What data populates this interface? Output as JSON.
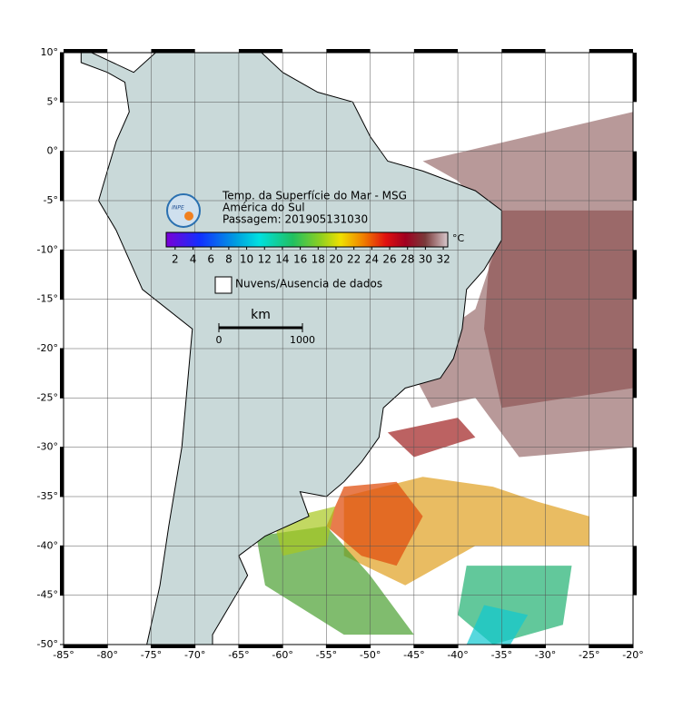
{
  "map": {
    "xlim": [
      -85,
      -20
    ],
    "ylim": [
      -50,
      10
    ],
    "xticks": [
      {
        "value": -85,
        "label": "-85°"
      },
      {
        "value": -80,
        "label": "-80°"
      },
      {
        "value": -75,
        "label": "-75°"
      },
      {
        "value": -70,
        "label": "-70°"
      },
      {
        "value": -65,
        "label": "-65°"
      },
      {
        "value": -60,
        "label": "-60°"
      },
      {
        "value": -55,
        "label": "-55°"
      },
      {
        "value": -50,
        "label": "-50°"
      },
      {
        "value": -45,
        "label": "-45°"
      },
      {
        "value": -40,
        "label": "-40°"
      },
      {
        "value": -35,
        "label": "-35°"
      },
      {
        "value": -30,
        "label": "-30°"
      },
      {
        "value": -25,
        "label": "-25°"
      },
      {
        "value": -20,
        "label": "-20°"
      }
    ],
    "yticks": [
      {
        "value": 10,
        "label": "10°"
      },
      {
        "value": 5,
        "label": "5°"
      },
      {
        "value": 0,
        "label": "0°"
      },
      {
        "value": -5,
        "label": "-5°"
      },
      {
        "value": -10,
        "label": "-10°"
      },
      {
        "value": -15,
        "label": "-15°"
      },
      {
        "value": -20,
        "label": "-20°"
      },
      {
        "value": -25,
        "label": "-25°"
      },
      {
        "value": -30,
        "label": "-30°"
      },
      {
        "value": -35,
        "label": "-35°"
      },
      {
        "value": -40,
        "label": "-40°"
      },
      {
        "value": -45,
        "label": "-45°"
      },
      {
        "value": -50,
        "label": "-50°"
      }
    ],
    "grid": true
  },
  "legend": {
    "logo": "INPE",
    "title_lines": [
      "Temp. da Superfície do Mar - MSG",
      "América do Sul",
      "Passagem: 201905131030"
    ],
    "colorbar": {
      "lim": [
        1,
        32.5
      ],
      "ticks": [
        2,
        4,
        6,
        8,
        10,
        12,
        14,
        16,
        18,
        20,
        22,
        24,
        26,
        28,
        30,
        32
      ],
      "unit": "°C"
    },
    "no_data": "Nuvens/Ausencia de dados",
    "scale": {
      "unit": "km",
      "ticks": [
        0,
        1000
      ]
    }
  }
}
